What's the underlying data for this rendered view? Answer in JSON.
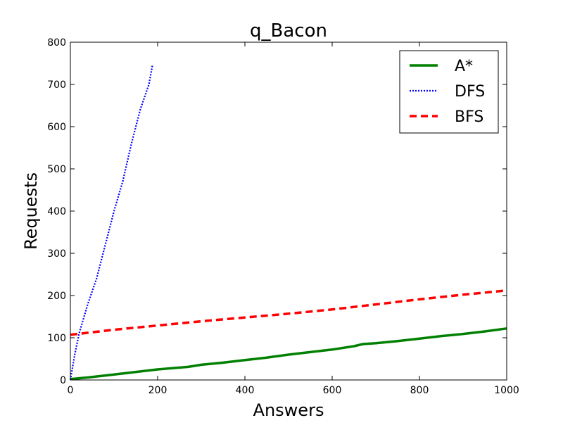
{
  "chart_data": {
    "type": "line",
    "title": "q_Bacon",
    "xlabel": "Answers",
    "ylabel": "Requests",
    "xlim": [
      0,
      1000
    ],
    "ylim": [
      0,
      800
    ],
    "xticks": [
      "0",
      "200",
      "400",
      "600",
      "800",
      "1000"
    ],
    "yticks": [
      "0",
      "100",
      "200",
      "300",
      "400",
      "500",
      "600",
      "700",
      "800"
    ],
    "grid": false,
    "legend_position": "top-right",
    "series": [
      {
        "name": "A*",
        "color": "#008000",
        "style": "solid",
        "points": [
          [
            0,
            2
          ],
          [
            50,
            7
          ],
          [
            100,
            13
          ],
          [
            150,
            19
          ],
          [
            200,
            25
          ],
          [
            270,
            31
          ],
          [
            300,
            36
          ],
          [
            350,
            41
          ],
          [
            400,
            47
          ],
          [
            450,
            53
          ],
          [
            500,
            60
          ],
          [
            550,
            66
          ],
          [
            600,
            72
          ],
          [
            650,
            80
          ],
          [
            670,
            85
          ],
          [
            700,
            87
          ],
          [
            750,
            92
          ],
          [
            800,
            98
          ],
          [
            850,
            104
          ],
          [
            900,
            109
          ],
          [
            950,
            115
          ],
          [
            1000,
            122
          ]
        ]
      },
      {
        "name": "DFS",
        "color": "#0000ff",
        "style": "dotted",
        "points": [
          [
            0,
            0
          ],
          [
            10,
            60
          ],
          [
            20,
            110
          ],
          [
            40,
            180
          ],
          [
            60,
            240
          ],
          [
            80,
            320
          ],
          [
            100,
            400
          ],
          [
            120,
            470
          ],
          [
            140,
            560
          ],
          [
            160,
            640
          ],
          [
            180,
            700
          ],
          [
            188,
            745
          ]
        ]
      },
      {
        "name": "BFS",
        "color": "#ff0000",
        "style": "dashed",
        "points": [
          [
            0,
            107
          ],
          [
            100,
            119
          ],
          [
            200,
            129
          ],
          [
            300,
            139
          ],
          [
            400,
            148
          ],
          [
            500,
            157
          ],
          [
            600,
            167
          ],
          [
            700,
            179
          ],
          [
            750,
            185
          ],
          [
            800,
            191
          ],
          [
            900,
            202
          ],
          [
            1000,
            212
          ]
        ]
      }
    ]
  }
}
